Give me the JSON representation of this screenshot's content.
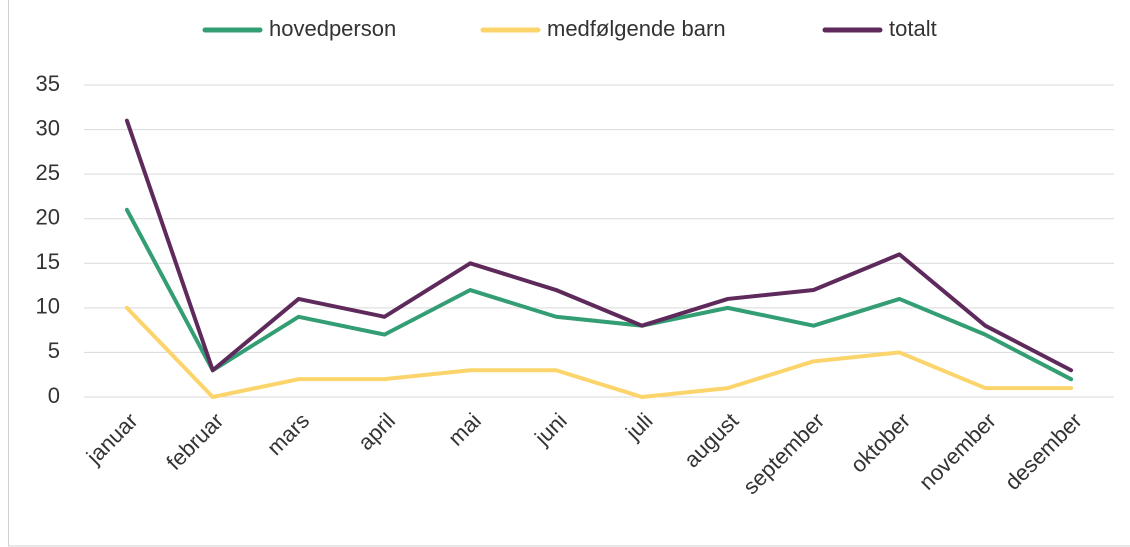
{
  "chart_data": {
    "type": "line",
    "categories": [
      "januar",
      "februar",
      "mars",
      "april",
      "mai",
      "juni",
      "juli",
      "august",
      "september",
      "oktober",
      "november",
      "desember"
    ],
    "series": [
      {
        "name": "hovedperson",
        "color": "#339e73",
        "values": [
          21,
          3,
          9,
          7,
          12,
          9,
          8,
          10,
          8,
          11,
          7,
          2
        ]
      },
      {
        "name": "medfølgende barn",
        "color": "#fbd56b",
        "values": [
          10,
          0,
          2,
          2,
          3,
          3,
          0,
          1,
          4,
          5,
          1,
          1
        ]
      },
      {
        "name": "totalt",
        "color": "#5e2a5c",
        "values": [
          31,
          3,
          11,
          9,
          15,
          12,
          8,
          11,
          12,
          16,
          8,
          3
        ]
      }
    ],
    "ylim": [
      0,
      35
    ],
    "yticks": [
      0,
      5,
      10,
      15,
      20,
      25,
      30,
      35
    ],
    "grid": true,
    "legend": "top"
  }
}
